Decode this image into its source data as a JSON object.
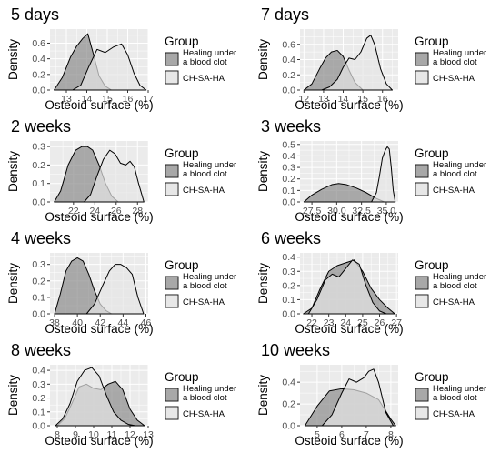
{
  "figure": {
    "panel_bg": "#ebebeb",
    "grid_color": "#ffffff",
    "series_colors": {
      "healing": "#8c8c8c",
      "chsaha": "#e6e6e6"
    },
    "line_color": "#000000"
  },
  "chart_data": [
    {
      "type": "area",
      "title": "5 days",
      "xlabel": "Osteoid surface (%)",
      "ylabel": "Density",
      "xlim": [
        12.2,
        17.0
      ],
      "ylim": [
        0,
        0.78
      ],
      "xticks": [
        {
          "v": 13,
          "label": "13"
        },
        {
          "v": 14,
          "label": "14"
        },
        {
          "v": 15,
          "label": "15"
        },
        {
          "v": 16,
          "label": "16"
        },
        {
          "v": 17,
          "label": "17"
        }
      ],
      "yticks": [
        {
          "v": 0.0,
          "label": "0.0"
        },
        {
          "v": 0.2,
          "label": "0.2"
        },
        {
          "v": 0.4,
          "label": "0.4"
        },
        {
          "v": 0.6,
          "label": "0.6"
        }
      ],
      "legend": {
        "title": "Group",
        "placement": "right",
        "entries": [
          {
            "label": "Healing under a blood clot",
            "lines": [
              "Healing under",
              "a blood clot"
            ],
            "series": 0
          },
          {
            "label": "CH-SA-HA",
            "lines": [
              "CH-SA-HA"
            ],
            "series": 1
          }
        ]
      },
      "series": [
        {
          "color_key": "healing",
          "x": [
            12.4,
            12.8,
            13.2,
            13.5,
            13.8,
            14.05,
            14.3,
            14.6,
            14.9,
            15.2
          ],
          "y": [
            0.0,
            0.16,
            0.42,
            0.56,
            0.66,
            0.72,
            0.48,
            0.18,
            0.05,
            0.0
          ]
        },
        {
          "color_key": "chsaha",
          "x": [
            13.3,
            13.7,
            14.1,
            14.5,
            14.9,
            15.3,
            15.7,
            16.0,
            16.3,
            16.6,
            16.9
          ],
          "y": [
            0.0,
            0.06,
            0.3,
            0.52,
            0.48,
            0.55,
            0.59,
            0.45,
            0.22,
            0.06,
            0.0
          ]
        }
      ]
    },
    {
      "type": "area",
      "title": "7 days",
      "xlabel": "Osteoid surface (%)",
      "ylabel": "Density",
      "xlim": [
        11.8,
        16.8
      ],
      "ylim": [
        0,
        0.8
      ],
      "xticks": [
        {
          "v": 12,
          "label": "12"
        },
        {
          "v": 13,
          "label": "13"
        },
        {
          "v": 14,
          "label": "14"
        },
        {
          "v": 15,
          "label": "15"
        },
        {
          "v": 16,
          "label": "16"
        }
      ],
      "yticks": [
        {
          "v": 0.0,
          "label": "0.0"
        },
        {
          "v": 0.2,
          "label": "0.2"
        },
        {
          "v": 0.4,
          "label": "0.4"
        },
        {
          "v": 0.6,
          "label": "0.6"
        }
      ],
      "legend": {
        "title": "Group",
        "placement": "right",
        "entries": [
          {
            "label": "Healing under a blood clot",
            "lines": [
              "Healing under",
              "a blood clot"
            ],
            "series": 0
          },
          {
            "label": "CH-SA-HA",
            "lines": [
              "CH-SA-HA"
            ],
            "series": 1
          }
        ]
      },
      "series": [
        {
          "color_key": "healing",
          "x": [
            12.0,
            12.4,
            12.8,
            13.1,
            13.4,
            13.7,
            14.0,
            14.3,
            14.6,
            15.0
          ],
          "y": [
            0.0,
            0.08,
            0.28,
            0.42,
            0.5,
            0.52,
            0.44,
            0.26,
            0.1,
            0.0
          ]
        },
        {
          "color_key": "chsaha",
          "x": [
            12.9,
            13.3,
            13.7,
            14.0,
            14.3,
            14.6,
            14.9,
            15.2,
            15.4,
            15.6,
            15.9,
            16.2,
            16.5
          ],
          "y": [
            0.0,
            0.04,
            0.14,
            0.3,
            0.42,
            0.4,
            0.5,
            0.68,
            0.72,
            0.6,
            0.28,
            0.08,
            0.0
          ]
        }
      ]
    },
    {
      "type": "area",
      "title": "2 weeks",
      "xlabel": "Osteoid surface (%)",
      "ylabel": "Density",
      "xlim": [
        19.8,
        29.0
      ],
      "ylim": [
        0,
        0.33
      ],
      "xticks": [
        {
          "v": 22,
          "label": "22"
        },
        {
          "v": 24,
          "label": "24"
        },
        {
          "v": 26,
          "label": "26"
        },
        {
          "v": 28,
          "label": "28"
        }
      ],
      "yticks": [
        {
          "v": 0.0,
          "label": "0.0"
        },
        {
          "v": 0.1,
          "label": "0.1"
        },
        {
          "v": 0.2,
          "label": "0.2"
        },
        {
          "v": 0.3,
          "label": "0.3"
        }
      ],
      "legend": {
        "title": "Group",
        "placement": "right",
        "entries": [
          {
            "label": "Healing under a blood clot",
            "lines": [
              "Healing under",
              "a blood clot"
            ],
            "series": 0
          },
          {
            "label": "CH-SA-HA",
            "lines": [
              "CH-SA-HA"
            ],
            "series": 1
          }
        ]
      },
      "series": [
        {
          "color_key": "healing",
          "x": [
            20.2,
            20.8,
            21.5,
            22.2,
            22.8,
            23.3,
            23.8,
            24.4,
            25.0,
            25.6,
            26.2
          ],
          "y": [
            0.0,
            0.06,
            0.2,
            0.28,
            0.3,
            0.3,
            0.28,
            0.2,
            0.1,
            0.03,
            0.0
          ]
        },
        {
          "color_key": "chsaha",
          "x": [
            23.0,
            23.6,
            24.2,
            24.8,
            25.4,
            25.9,
            26.4,
            26.9,
            27.3,
            27.7,
            28.1,
            28.6
          ],
          "y": [
            0.0,
            0.04,
            0.14,
            0.23,
            0.28,
            0.26,
            0.21,
            0.2,
            0.22,
            0.19,
            0.1,
            0.0
          ]
        }
      ]
    },
    {
      "type": "area",
      "title": "3 weeks",
      "xlabel": "Osteoid surface (%)",
      "ylabel": "Density",
      "xlim": [
        26.3,
        36.2
      ],
      "ylim": [
        0,
        0.53
      ],
      "xticks": [
        {
          "v": 27.5,
          "label": "27.5"
        },
        {
          "v": 30.0,
          "label": "30.0"
        },
        {
          "v": 32.5,
          "label": "32.5"
        },
        {
          "v": 35.0,
          "label": "35.0"
        }
      ],
      "yticks": [
        {
          "v": 0.0,
          "label": "0.0"
        },
        {
          "v": 0.1,
          "label": "0.1"
        },
        {
          "v": 0.2,
          "label": "0.2"
        },
        {
          "v": 0.3,
          "label": "0.3"
        },
        {
          "v": 0.4,
          "label": "0.4"
        },
        {
          "v": 0.5,
          "label": "0.5"
        }
      ],
      "legend": {
        "title": "Group",
        "placement": "right",
        "entries": [
          {
            "label": "Healing under a blood clot",
            "lines": [
              "Healing under",
              "a blood clot"
            ],
            "series": 0
          },
          {
            "label": "CH-SA-HA",
            "lines": [
              "CH-SA-HA"
            ],
            "series": 1
          }
        ]
      },
      "series": [
        {
          "color_key": "healing",
          "x": [
            26.7,
            27.5,
            28.5,
            29.5,
            30.2,
            31.0,
            32.0,
            33.0,
            34.0,
            34.8
          ],
          "y": [
            0.0,
            0.06,
            0.11,
            0.15,
            0.16,
            0.15,
            0.12,
            0.08,
            0.03,
            0.0
          ]
        },
        {
          "color_key": "chsaha",
          "x": [
            33.5,
            34.0,
            34.3,
            34.6,
            34.9,
            35.1,
            35.3,
            35.5,
            35.7,
            35.9
          ],
          "y": [
            0.0,
            0.08,
            0.22,
            0.38,
            0.45,
            0.48,
            0.46,
            0.3,
            0.1,
            0.0
          ]
        }
      ]
    },
    {
      "type": "area",
      "title": "4 weeks",
      "xlabel": "Osteoid surface (%)",
      "ylabel": "Density",
      "xlim": [
        37.6,
        46.2
      ],
      "ylim": [
        0,
        0.37
      ],
      "xticks": [
        {
          "v": 38,
          "label": "38"
        },
        {
          "v": 40,
          "label": "40"
        },
        {
          "v": 42,
          "label": "42"
        },
        {
          "v": 44,
          "label": "44"
        },
        {
          "v": 46,
          "label": "46"
        }
      ],
      "yticks": [
        {
          "v": 0.0,
          "label": "0.0"
        },
        {
          "v": 0.1,
          "label": "0.1"
        },
        {
          "v": 0.2,
          "label": "0.2"
        },
        {
          "v": 0.3,
          "label": "0.3"
        }
      ],
      "legend": {
        "title": "Group",
        "placement": "right",
        "entries": [
          {
            "label": "Healing under a blood clot",
            "lines": [
              "Healing under",
              "a blood clot"
            ],
            "series": 0
          },
          {
            "label": "CH-SA-HA",
            "lines": [
              "CH-SA-HA"
            ],
            "series": 1
          }
        ]
      },
      "series": [
        {
          "color_key": "healing",
          "x": [
            38.0,
            38.5,
            39.0,
            39.5,
            40.0,
            40.5,
            41.0,
            41.5,
            42.0,
            42.5,
            43.0
          ],
          "y": [
            0.0,
            0.12,
            0.26,
            0.32,
            0.34,
            0.32,
            0.24,
            0.14,
            0.06,
            0.02,
            0.0
          ]
        },
        {
          "color_key": "chsaha",
          "x": [
            40.8,
            41.5,
            42.2,
            42.8,
            43.3,
            43.8,
            44.3,
            44.8,
            45.3,
            45.8
          ],
          "y": [
            0.0,
            0.06,
            0.17,
            0.26,
            0.3,
            0.3,
            0.28,
            0.24,
            0.1,
            0.0
          ]
        }
      ]
    },
    {
      "type": "area",
      "title": "6 weeks",
      "xlabel": "Osteoid surface (%)",
      "ylabel": "Density",
      "xlim": [
        21.3,
        27.1
      ],
      "ylim": [
        0,
        0.43
      ],
      "xticks": [
        {
          "v": 22,
          "label": "22"
        },
        {
          "v": 23,
          "label": "23"
        },
        {
          "v": 24,
          "label": "24"
        },
        {
          "v": 25,
          "label": "25"
        },
        {
          "v": 26,
          "label": "26"
        },
        {
          "v": 27,
          "label": "27"
        }
      ],
      "yticks": [
        {
          "v": 0.0,
          "label": "0.0"
        },
        {
          "v": 0.1,
          "label": "0.1"
        },
        {
          "v": 0.2,
          "label": "0.2"
        },
        {
          "v": 0.3,
          "label": "0.3"
        },
        {
          "v": 0.4,
          "label": "0.4"
        }
      ],
      "legend": {
        "title": "Group",
        "placement": "right",
        "entries": [
          {
            "label": "Healing under a blood clot",
            "lines": [
              "Healing under",
              "a blood clot"
            ],
            "series": 0
          },
          {
            "label": "CH-SA-HA",
            "lines": [
              "CH-SA-HA"
            ],
            "series": 1
          }
        ]
      },
      "series": [
        {
          "color_key": "healing",
          "x": [
            21.5,
            22.0,
            22.5,
            23.0,
            23.5,
            24.0,
            24.5,
            25.0,
            25.5,
            26.0,
            26.5,
            26.9
          ],
          "y": [
            0.0,
            0.04,
            0.18,
            0.3,
            0.34,
            0.36,
            0.38,
            0.3,
            0.18,
            0.1,
            0.04,
            0.0
          ]
        },
        {
          "color_key": "chsaha",
          "x": [
            21.8,
            22.3,
            22.8,
            23.2,
            23.6,
            24.0,
            24.4,
            24.8,
            25.2,
            25.6,
            26.0,
            26.4
          ],
          "y": [
            0.0,
            0.1,
            0.24,
            0.28,
            0.26,
            0.32,
            0.38,
            0.35,
            0.2,
            0.08,
            0.02,
            0.0
          ]
        }
      ]
    },
    {
      "type": "area",
      "title": "8 weeks",
      "xlabel": "Osteoid surface (%)",
      "ylabel": "Density",
      "xlim": [
        7.6,
        13.0
      ],
      "ylim": [
        0,
        0.44
      ],
      "xticks": [
        {
          "v": 8,
          "label": "8"
        },
        {
          "v": 9,
          "label": "9"
        },
        {
          "v": 10,
          "label": "10"
        },
        {
          "v": 11,
          "label": "11"
        },
        {
          "v": 12,
          "label": "12"
        },
        {
          "v": 13,
          "label": "13"
        }
      ],
      "yticks": [
        {
          "v": 0.0,
          "label": "0.0"
        },
        {
          "v": 0.1,
          "label": "0.1"
        },
        {
          "v": 0.2,
          "label": "0.2"
        },
        {
          "v": 0.3,
          "label": "0.3"
        },
        {
          "v": 0.4,
          "label": "0.4"
        }
      ],
      "legend": {
        "title": "Group",
        "placement": "right",
        "entries": [
          {
            "label": "Healing under a blood clot",
            "lines": [
              "Healing under",
              "a blood clot"
            ],
            "series": 0
          },
          {
            "label": "CH-SA-HA",
            "lines": [
              "CH-SA-HA"
            ],
            "series": 1
          }
        ]
      },
      "series": [
        {
          "color_key": "healing",
          "x": [
            8.0,
            8.4,
            8.8,
            9.2,
            9.6,
            10.0,
            10.4,
            10.8,
            11.2,
            11.6,
            12.0,
            12.4,
            12.8
          ],
          "y": [
            0.0,
            0.05,
            0.16,
            0.28,
            0.3,
            0.27,
            0.26,
            0.3,
            0.32,
            0.26,
            0.12,
            0.04,
            0.0
          ]
        },
        {
          "color_key": "chsaha",
          "x": [
            7.9,
            8.3,
            8.7,
            9.1,
            9.5,
            9.9,
            10.3,
            10.7,
            11.1,
            11.5,
            11.9,
            12.3
          ],
          "y": [
            0.0,
            0.05,
            0.16,
            0.32,
            0.4,
            0.42,
            0.36,
            0.22,
            0.1,
            0.04,
            0.01,
            0.0
          ]
        }
      ]
    },
    {
      "type": "area",
      "title": "10 weeks",
      "xlabel": "Osteoid surface (%)",
      "ylabel": "Density",
      "xlim": [
        4.3,
        8.3
      ],
      "ylim": [
        0,
        0.56
      ],
      "xticks": [
        {
          "v": 5,
          "label": "5"
        },
        {
          "v": 6,
          "label": "6"
        },
        {
          "v": 7,
          "label": "7"
        },
        {
          "v": 8,
          "label": "8"
        }
      ],
      "yticks": [
        {
          "v": 0.0,
          "label": "0.0"
        },
        {
          "v": 0.2,
          "label": "0.2"
        },
        {
          "v": 0.4,
          "label": "0.4"
        }
      ],
      "legend": {
        "title": "Group",
        "placement": "right",
        "entries": [
          {
            "label": "Healing under a blood clot",
            "lines": [
              "Healing under",
              "a blood clot"
            ],
            "series": 0
          },
          {
            "label": "CH-SA-HA",
            "lines": [
              "CH-SA-HA"
            ],
            "series": 1
          }
        ]
      },
      "series": [
        {
          "color_key": "healing",
          "x": [
            4.5,
            5.0,
            5.5,
            6.0,
            6.5,
            7.0,
            7.5,
            8.0,
            8.2
          ],
          "y": [
            0.0,
            0.18,
            0.32,
            0.34,
            0.33,
            0.3,
            0.24,
            0.06,
            0.0
          ]
        },
        {
          "color_key": "chsaha",
          "x": [
            5.2,
            5.6,
            6.0,
            6.3,
            6.6,
            6.9,
            7.1,
            7.3,
            7.5,
            7.8,
            8.1
          ],
          "y": [
            0.0,
            0.1,
            0.3,
            0.43,
            0.4,
            0.44,
            0.5,
            0.52,
            0.4,
            0.12,
            0.0
          ]
        }
      ]
    }
  ]
}
